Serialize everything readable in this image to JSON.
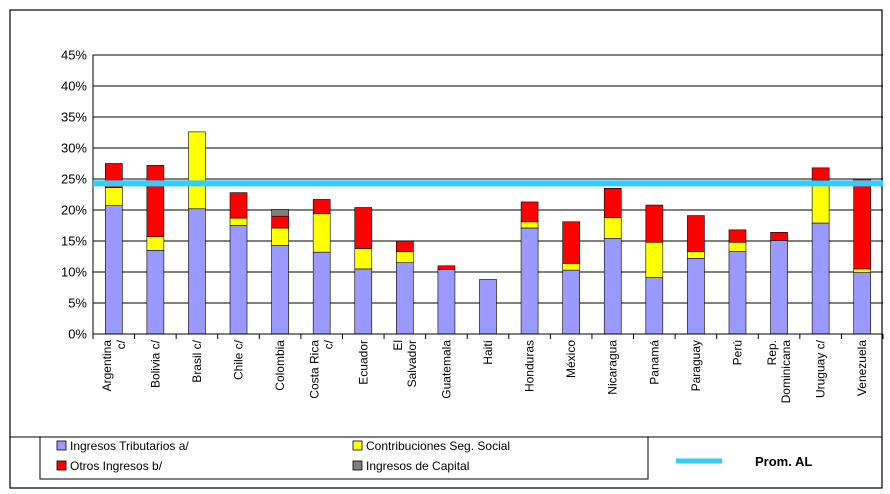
{
  "chart_data": {
    "type": "bar",
    "stacked": true,
    "title": "",
    "xlabel": "",
    "ylabel": "",
    "ylim": [
      0,
      0.45
    ],
    "yticks": [
      "0%",
      "5%",
      "10%",
      "15%",
      "20%",
      "25%",
      "30%",
      "35%",
      "40%",
      "45%"
    ],
    "grid": true,
    "legend_position": "bottom",
    "categories": [
      "Argentina c/",
      "Bolivia c/",
      "Brasil c/",
      "Chile c/",
      "Colombia",
      "Costa Rica c/",
      "Ecuador",
      "El Salvador",
      "Guatemala",
      "Haití",
      "Honduras",
      "México",
      "Nicaragua",
      "Panamá",
      "Paraguay",
      "Perú",
      "Rep. Dominicana",
      "Uruguay c/",
      "Venezuela"
    ],
    "series": [
      {
        "name": "Ingresos Tributarios a/",
        "color": "#9999ff",
        "values": [
          0.207,
          0.135,
          0.202,
          0.175,
          0.143,
          0.132,
          0.105,
          0.115,
          0.104,
          0.088,
          0.171,
          0.103,
          0.154,
          0.091,
          0.122,
          0.133,
          0.151,
          0.179,
          0.099
        ]
      },
      {
        "name": "Contribuciones Seg. Social",
        "color": "#ffff00",
        "values": [
          0.029,
          0.022,
          0.124,
          0.012,
          0.028,
          0.062,
          0.033,
          0.018,
          0.0,
          0.0,
          0.01,
          0.011,
          0.034,
          0.057,
          0.011,
          0.015,
          0.0,
          0.069,
          0.006
        ]
      },
      {
        "name": "Otros Ingresos b/",
        "color": "#ff0000",
        "values": [
          0.039,
          0.115,
          0.0,
          0.041,
          0.019,
          0.023,
          0.066,
          0.017,
          0.006,
          0.0,
          0.032,
          0.067,
          0.047,
          0.06,
          0.058,
          0.02,
          0.013,
          0.02,
          0.145
        ]
      },
      {
        "name": "Ingresos de Capital",
        "color": "#808080",
        "values": [
          0.0,
          0.0,
          0.0,
          0.0,
          0.011,
          0.0,
          0.0,
          0.0,
          0.0,
          0.0,
          0.0,
          0.0,
          0.0,
          0.0,
          0.0,
          0.0,
          0.0,
          0.0,
          0.0
        ]
      }
    ],
    "average_line": {
      "name": "Prom. AL",
      "value": 0.243,
      "color": "#33ccff"
    }
  }
}
